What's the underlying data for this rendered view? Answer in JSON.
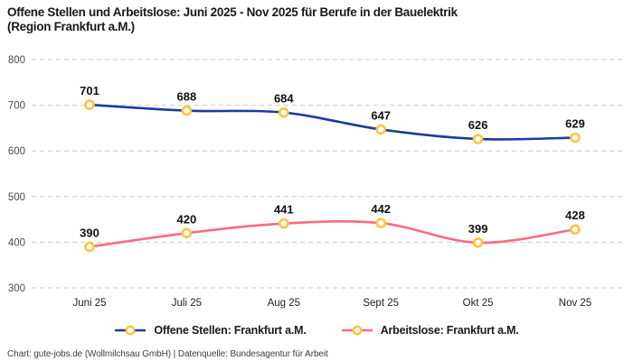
{
  "header": {
    "title_line1": "Offene Stellen und Arbeitslose: Juni 2025 - Nov 2025 für Berufe in der Bauelektrik",
    "title_line2": "(Region Frankfurt a.M.)"
  },
  "chart_data": {
    "type": "line",
    "title": "Offene Stellen und Arbeitslose: Juni 2025 - Nov 2025 für Berufe in der Bauelektrik (Region Frankfurt a.M.)",
    "categories": [
      "Juni 25",
      "Juli 25",
      "Aug 25",
      "Sept 25",
      "Okt 25",
      "Nov 25"
    ],
    "series": [
      {
        "name": "Offene Stellen: Frankfurt a.M.",
        "color": "#1e3a9e",
        "values": [
          701,
          688,
          684,
          647,
          626,
          629
        ]
      },
      {
        "name": "Arbeitslose: Frankfurt a.M.",
        "color": "#fa6b83",
        "values": [
          390,
          420,
          441,
          442,
          399,
          428
        ]
      }
    ],
    "marker": {
      "shape": "circle",
      "ring_color": "#fdc53d",
      "fill": "#ffffff"
    },
    "ylim": [
      300,
      800
    ],
    "yticks": [
      300,
      400,
      500,
      600,
      700,
      800
    ],
    "grid": "horizontal-dashed",
    "grid_color": "#cbcbcb",
    "legend_position": "bottom",
    "data_labels": true
  },
  "footer": {
    "credit": "Chart: gute-jobs.de (Wollmilchsau GmbH) | Datenquelle: Bundesagentur für Arbeit"
  }
}
